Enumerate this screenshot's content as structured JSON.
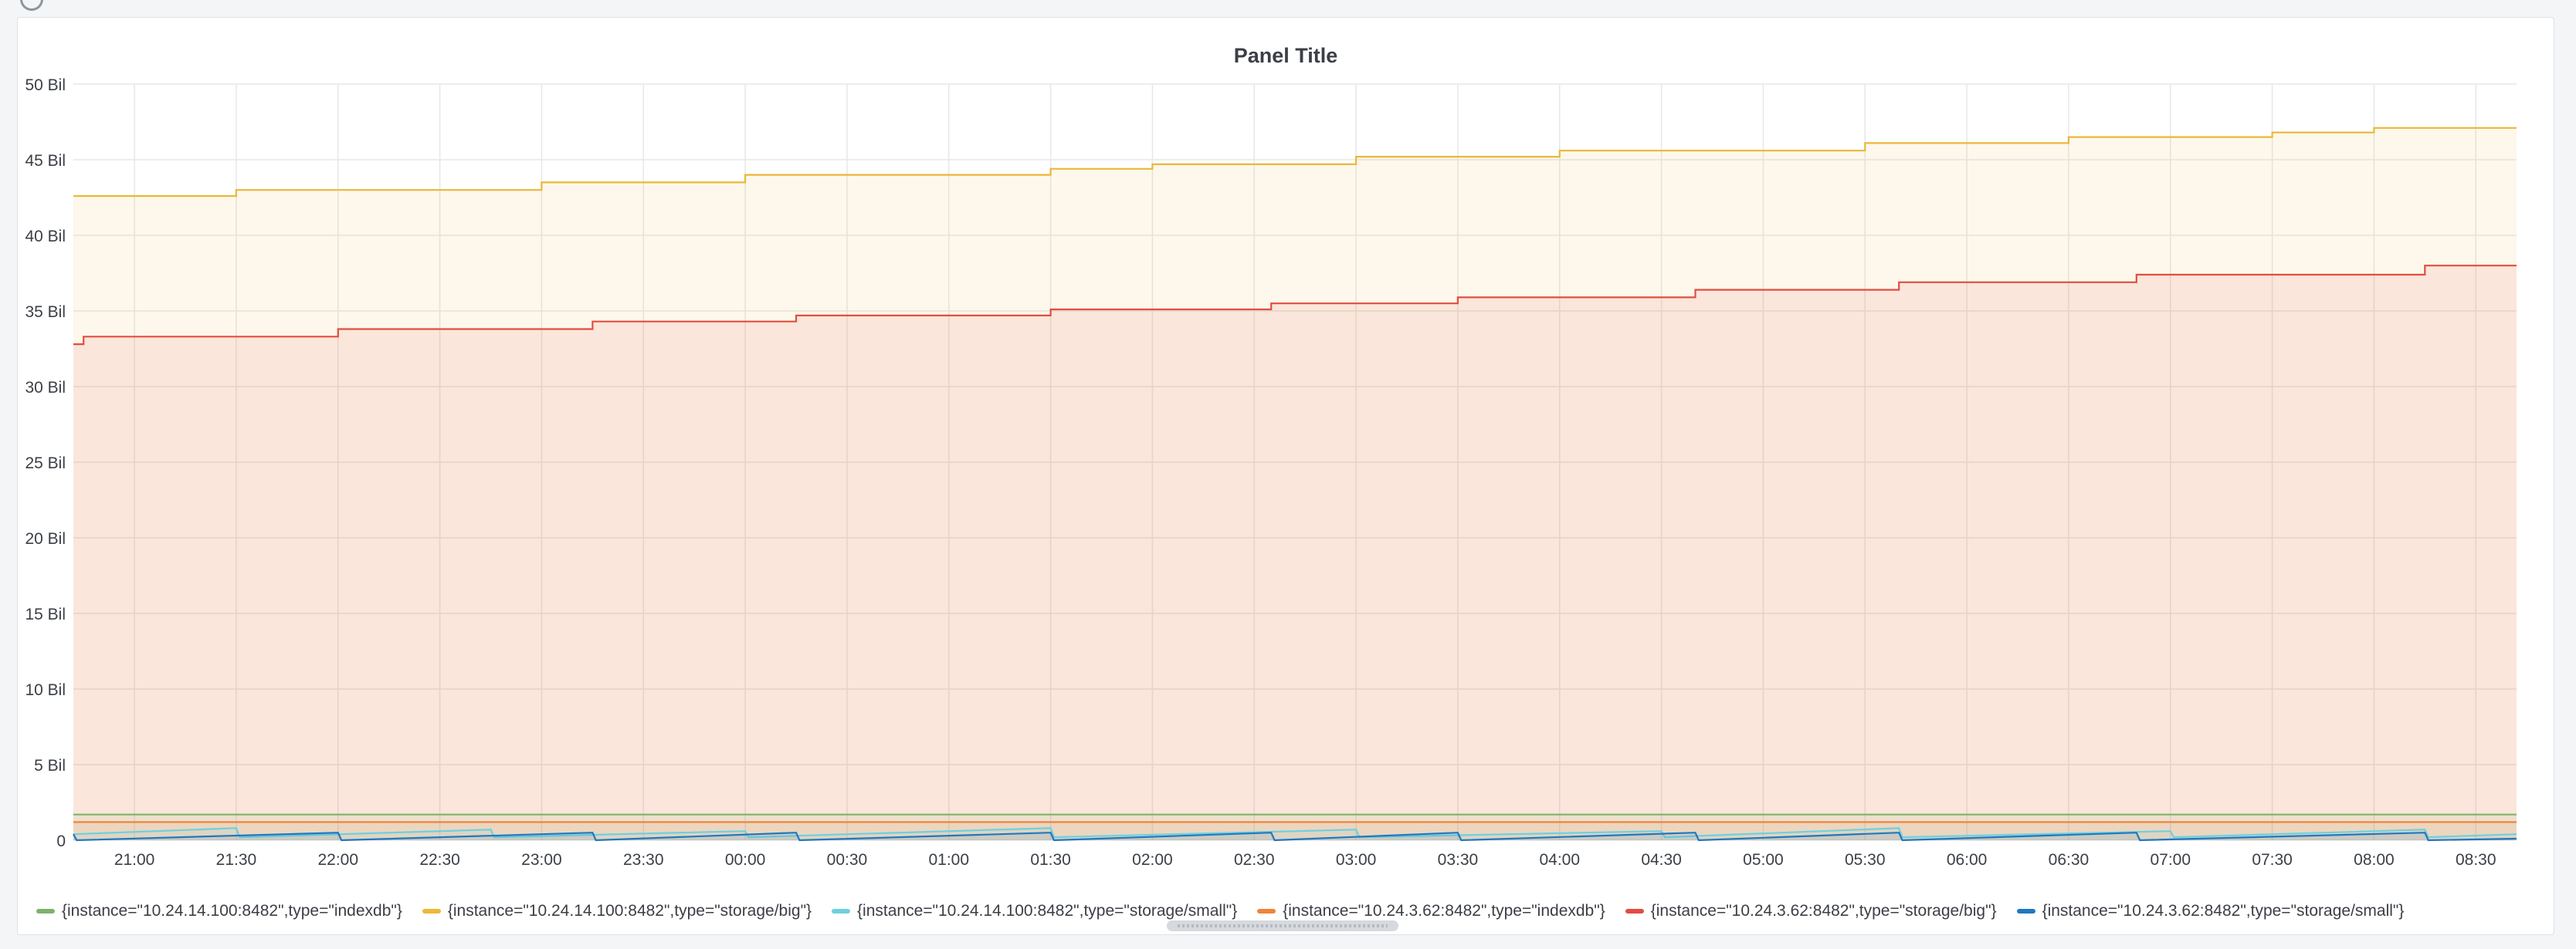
{
  "panel": {
    "title": "Panel Title"
  },
  "chart_data": {
    "type": "area",
    "title": "Panel Title",
    "xlabel": "",
    "ylabel": "",
    "ylim": [
      0,
      50
    ],
    "y_unit": "Bil",
    "y_ticks": [
      "0",
      "5 Bil",
      "10 Bil",
      "15 Bil",
      "20 Bil",
      "25 Bil",
      "30 Bil",
      "35 Bil",
      "40 Bil",
      "45 Bil",
      "50 Bil"
    ],
    "y_tick_values": [
      0,
      5,
      10,
      15,
      20,
      25,
      30,
      35,
      40,
      45,
      50
    ],
    "x_ticks": [
      "21:00",
      "21:30",
      "22:00",
      "22:30",
      "23:00",
      "23:30",
      "00:00",
      "00:30",
      "01:00",
      "01:30",
      "02:00",
      "02:30",
      "03:00",
      "03:30",
      "04:00",
      "04:30",
      "05:00",
      "05:30",
      "06:00",
      "06:30",
      "07:00",
      "07:30",
      "08:00",
      "08:30"
    ],
    "x_range": [
      "20:42",
      "08:42"
    ],
    "grid": true,
    "legend_position": "bottom",
    "series": [
      {
        "name": "{instance=\"10.24.14.100:8482\",type=\"indexdb\"}",
        "color": "#7eb26d",
        "x": [
          "20:42",
          "08:42"
        ],
        "values": [
          1.7,
          1.7
        ]
      },
      {
        "name": "{instance=\"10.24.14.100:8482\",type=\"storage/big\"}",
        "color": "#eab839",
        "x": [
          "20:42",
          "21:30",
          "22:45",
          "23:00",
          "23:57",
          "00:00",
          "01:15",
          "01:30",
          "02:00",
          "02:30",
          "03:00",
          "03:30",
          "04:00",
          "04:30",
          "05:00",
          "05:30",
          "06:05",
          "06:30",
          "07:00",
          "07:30",
          "07:45",
          "08:00",
          "08:42"
        ],
        "values": [
          42.6,
          43.0,
          43.0,
          43.5,
          43.5,
          44.0,
          44.0,
          44.4,
          44.7,
          44.7,
          45.2,
          45.2,
          45.6,
          45.6,
          45.6,
          46.1,
          46.1,
          46.5,
          46.5,
          46.8,
          46.8,
          47.1,
          47.1
        ]
      },
      {
        "name": "{instance=\"10.24.14.100:8482\",type=\"storage/small\"}",
        "color": "#6ed0e0",
        "x": [
          "20:42",
          "21:30",
          "21:31",
          "22:45",
          "22:46",
          "00:00",
          "00:01",
          "01:30",
          "01:31",
          "03:00",
          "03:01",
          "04:30",
          "04:31",
          "05:40",
          "05:41",
          "07:00",
          "07:01",
          "08:15",
          "08:16",
          "08:42"
        ],
        "values": [
          0.4,
          0.8,
          0.2,
          0.7,
          0.2,
          0.6,
          0.2,
          0.8,
          0.2,
          0.7,
          0.2,
          0.6,
          0.2,
          0.8,
          0.2,
          0.6,
          0.2,
          0.7,
          0.2,
          0.4
        ]
      },
      {
        "name": "{instance=\"10.24.3.62:8482\",type=\"indexdb\"}",
        "color": "#ef843c",
        "x": [
          "20:42",
          "08:42"
        ],
        "values": [
          1.2,
          1.2
        ]
      },
      {
        "name": "{instance=\"10.24.3.62:8482\",type=\"storage/big\"}",
        "color": "#e24d42",
        "x": [
          "20:42",
          "20:45",
          "22:00",
          "23:15",
          "00:15",
          "01:30",
          "02:35",
          "03:30",
          "04:40",
          "05:40",
          "06:50",
          "08:15",
          "08:42"
        ],
        "values": [
          32.8,
          33.3,
          33.8,
          34.3,
          34.7,
          35.1,
          35.5,
          35.9,
          36.4,
          36.9,
          37.4,
          38.0,
          38.0
        ]
      },
      {
        "name": "{instance=\"10.24.3.62:8482\",type=\"storage/small\"}",
        "color": "#1f78c1",
        "x": [
          "20:42",
          "20:43",
          "22:00",
          "22:01",
          "23:15",
          "23:16",
          "00:15",
          "00:16",
          "01:30",
          "01:31",
          "02:35",
          "02:36",
          "03:30",
          "03:31",
          "04:40",
          "04:41",
          "05:40",
          "05:41",
          "06:50",
          "06:51",
          "08:15",
          "08:16",
          "08:42"
        ],
        "values": [
          0.4,
          0.0,
          0.5,
          0.0,
          0.5,
          0.0,
          0.5,
          0.0,
          0.5,
          0.0,
          0.5,
          0.0,
          0.5,
          0.0,
          0.5,
          0.0,
          0.5,
          0.0,
          0.5,
          0.0,
          0.5,
          0.0,
          0.1
        ]
      }
    ]
  }
}
